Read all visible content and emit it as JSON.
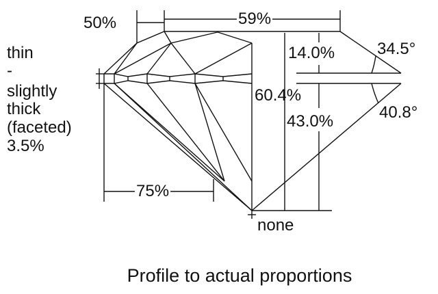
{
  "labels": {
    "crown_star": "50%",
    "table": "59%",
    "crown_height": "14.0%",
    "crown_angle": "34.5°",
    "total_depth": "60.4%",
    "pavilion_depth": "43.0%",
    "pavilion_angle": "40.8°",
    "lower_half": "75%",
    "culet": "none"
  },
  "girdle": [
    "thin",
    "-",
    "slightly",
    "thick",
    "(faceted)",
    "3.5%"
  ],
  "caption": "Profile to actual proportions",
  "colors": {
    "line": "#111111",
    "background": "#ffffff"
  }
}
